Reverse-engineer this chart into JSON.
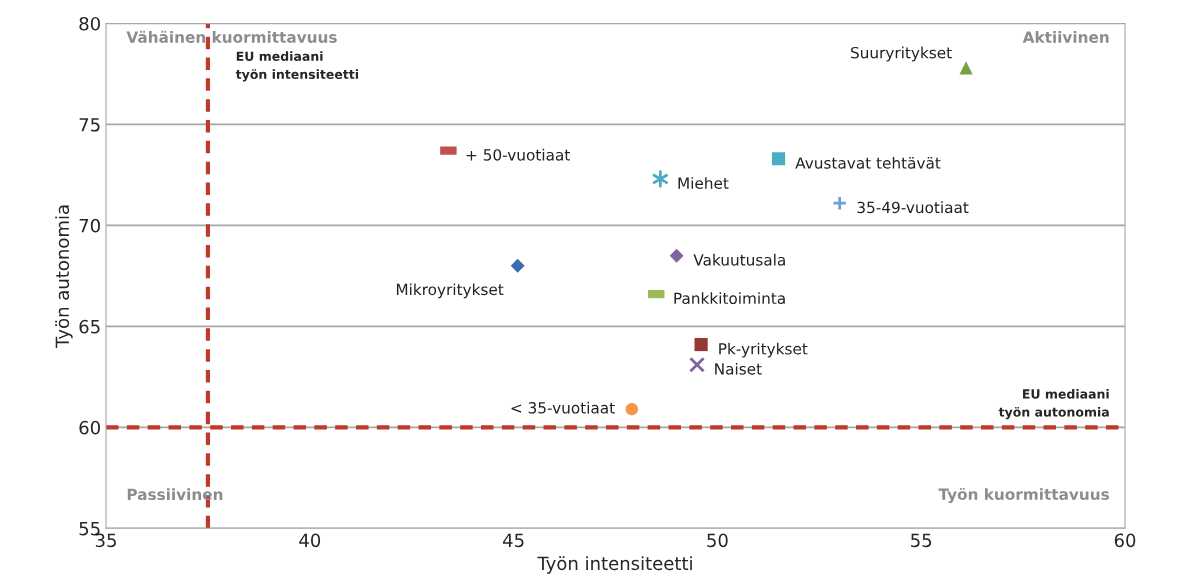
{
  "chart_data": {
    "type": "scatter",
    "xlabel": "Työn intensiteetti",
    "ylabel": "Työn autonomia",
    "xlim": [
      35,
      60
    ],
    "xticks": [
      35,
      40,
      45,
      50,
      55,
      60
    ],
    "ylim": [
      55,
      80
    ],
    "yticks": [
      55,
      60,
      65,
      70,
      75,
      80
    ],
    "grid": "y",
    "legend": false,
    "series": [
      {
        "name": "Suuryritykset",
        "color": "#77a13e",
        "marker": "triangle",
        "x": [
          56.1
        ],
        "values": [
          77.8
        ]
      },
      {
        "name": "+ 50-vuotiaat",
        "color": "#c0504d",
        "marker": "square",
        "x": [
          43.4
        ],
        "values": [
          73.7
        ]
      },
      {
        "name": "Miehet",
        "color": "#4bacc6",
        "marker": "cross",
        "x": [
          48.6
        ],
        "values": [
          72.3
        ]
      },
      {
        "name": "Avustavat tehtävät",
        "color": "#4bacc6",
        "marker": "square",
        "x": [
          51.5
        ],
        "values": [
          73.3
        ]
      },
      {
        "name": "35-49-vuotiaat",
        "color": "#6f9fd8",
        "marker": "cross",
        "x": [
          53.0
        ],
        "values": [
          71.1
        ]
      },
      {
        "name": "Mikroyritykset",
        "color": "#3a6cb0",
        "marker": "diamond",
        "x": [
          45.1
        ],
        "values": [
          68.0
        ]
      },
      {
        "name": "Vakuutusala",
        "color": "#8064a2",
        "marker": "diamond",
        "x": [
          49.0
        ],
        "values": [
          68.5
        ]
      },
      {
        "name": "Pankkitoiminta",
        "color": "#9bbb59",
        "marker": "square",
        "x": [
          48.5
        ],
        "values": [
          66.6
        ]
      },
      {
        "name": "Pk-yritykset",
        "color": "#953735",
        "marker": "square",
        "x": [
          49.6
        ],
        "values": [
          64.1
        ]
      },
      {
        "name": "Naiset",
        "color": "#8064a2",
        "marker": "cross",
        "x": [
          49.5
        ],
        "values": [
          63.1
        ]
      },
      {
        "name": "< 35-vuotiaat",
        "color": "#f79646",
        "marker": "circle",
        "x": [
          47.9
        ],
        "values": [
          60.9
        ]
      }
    ],
    "ref_lines": [
      {
        "axis": "x",
        "value": 37.5,
        "label": "EU mediaani\ntyön intensiteetti",
        "color": "#c0392b",
        "line_style": "dashed"
      },
      {
        "axis": "y",
        "value": 60,
        "label": "EU mediaani\ntyön autonomia",
        "color": "#c0392b",
        "line_style": "dashed"
      }
    ],
    "annotations": [
      "Vähäinen kuormittavuus",
      "Aktiivinen",
      "Passiivinen",
      "Työn kuormittavuus"
    ]
  }
}
